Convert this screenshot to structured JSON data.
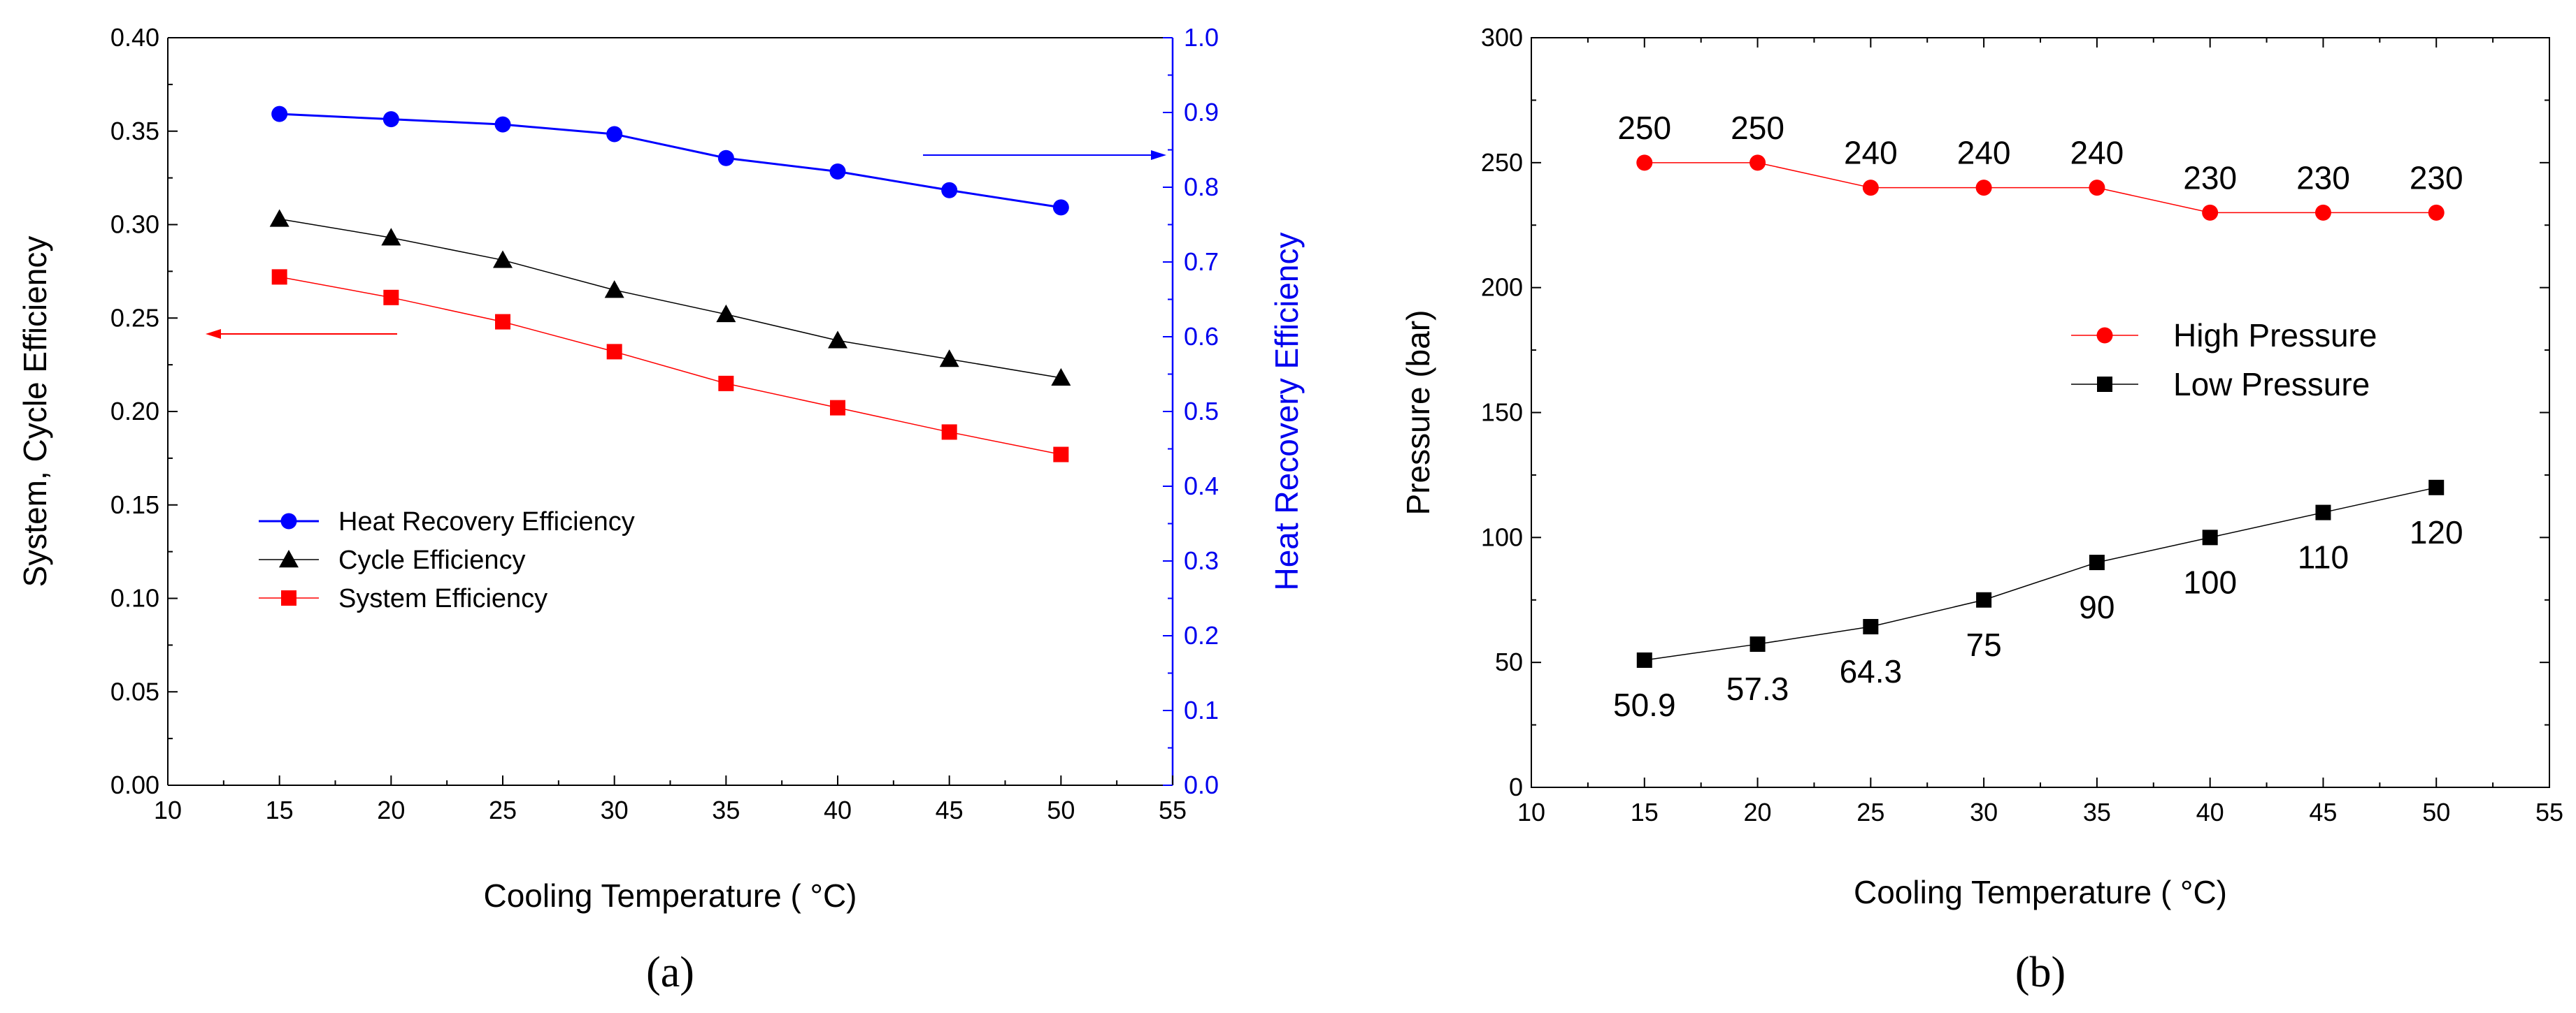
{
  "chart_data": [
    {
      "type": "line",
      "panel": "a",
      "caption": "(a)",
      "xlabel": "Cooling Temperature ( °C)",
      "ylabel_left": "System, Cycle Efficiency",
      "ylabel_right": "Heat Recovery Efficiency",
      "xlim": [
        10,
        55
      ],
      "ylim_left": [
        0.0,
        0.4
      ],
      "ylim_right": [
        0.0,
        1.0
      ],
      "x_ticks": [
        "10",
        "15",
        "20",
        "25",
        "30",
        "35",
        "40",
        "45",
        "50",
        "55"
      ],
      "y_left_ticks": [
        "0.00",
        "0.05",
        "0.10",
        "0.15",
        "0.20",
        "0.25",
        "0.30",
        "0.35",
        "0.40"
      ],
      "y_right_ticks": [
        "0.0",
        "0.1",
        "0.2",
        "0.3",
        "0.4",
        "0.5",
        "0.6",
        "0.7",
        "0.8",
        "0.9",
        "1.0"
      ],
      "x": [
        15,
        20,
        25,
        30,
        35,
        40,
        45,
        50
      ],
      "series": [
        {
          "name": "Heat Recovery Efficiency",
          "axis": "right",
          "marker": "circle",
          "color": "#0000ff",
          "values": [
            0.898,
            0.891,
            0.884,
            0.871,
            0.839,
            0.821,
            0.796,
            0.773
          ]
        },
        {
          "name": "Cycle Efficiency",
          "axis": "left",
          "marker": "triangle",
          "color": "#000000",
          "values": [
            0.303,
            0.293,
            0.281,
            0.265,
            0.252,
            0.238,
            0.228,
            0.218
          ]
        },
        {
          "name": "System Efficiency",
          "axis": "left",
          "marker": "square",
          "color": "#ff0000",
          "values": [
            0.272,
            0.261,
            0.248,
            0.232,
            0.215,
            0.202,
            0.189,
            0.177
          ]
        }
      ],
      "legend_position": "lower-left"
    },
    {
      "type": "line",
      "panel": "b",
      "caption": "(b)",
      "xlabel": "Cooling Temperature ( °C)",
      "ylabel": "Pressure (bar)",
      "xlim": [
        10,
        55
      ],
      "ylim": [
        0,
        300
      ],
      "x_ticks": [
        "10",
        "15",
        "20",
        "25",
        "30",
        "35",
        "40",
        "45",
        "50",
        "55"
      ],
      "y_ticks": [
        "0",
        "50",
        "100",
        "150",
        "200",
        "250",
        "300"
      ],
      "x": [
        15,
        20,
        25,
        30,
        35,
        40,
        45,
        50
      ],
      "series": [
        {
          "name": "High Pressure",
          "marker": "circle",
          "color": "#ff0000",
          "values": [
            250,
            250,
            240,
            240,
            240,
            230,
            230,
            230
          ],
          "labels": [
            "250",
            "250",
            "240",
            "240",
            "240",
            "230",
            "230",
            "230"
          ]
        },
        {
          "name": "Low Pressure",
          "marker": "square",
          "color": "#000000",
          "values": [
            50.9,
            57.3,
            64.3,
            75,
            90,
            100,
            110,
            120
          ],
          "labels": [
            "50.9",
            "57.3",
            "64.3",
            "75",
            "90",
            "100",
            "110",
            "120"
          ]
        }
      ],
      "legend_position": "center-right"
    }
  ]
}
